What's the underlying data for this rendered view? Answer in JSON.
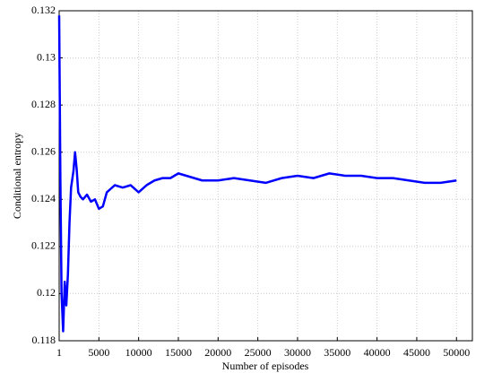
{
  "chart_data": {
    "type": "line",
    "xlabel": "Number of episodes",
    "ylabel": "Conditional entropy",
    "xlim": [
      0,
      52000
    ],
    "xticks": [
      1,
      5000,
      10000,
      15000,
      20000,
      25000,
      30000,
      35000,
      40000,
      45000,
      50000
    ],
    "ylim": [
      0.118,
      0.132
    ],
    "yticks": [
      0.118,
      0.12,
      0.122,
      0.124,
      0.126,
      0.128,
      0.13,
      0.132
    ],
    "grid": true,
    "series": [
      {
        "color": "#0000ff",
        "x": [
          1,
          150,
          300,
          500,
          700,
          900,
          1100,
          1300,
          1500,
          1800,
          2000,
          2200,
          2400,
          2700,
          3000,
          3500,
          4000,
          4500,
          5000,
          5500,
          6000,
          7000,
          8000,
          9000,
          10000,
          11000,
          12000,
          13000,
          14000,
          15000,
          16000,
          17000,
          18000,
          20000,
          22000,
          24000,
          26000,
          28000,
          30000,
          32000,
          34000,
          36000,
          38000,
          40000,
          42000,
          44000,
          46000,
          48000,
          50000
        ],
        "values": [
          0.1318,
          0.125,
          0.12,
          0.1184,
          0.1205,
          0.1195,
          0.1208,
          0.123,
          0.1245,
          0.1252,
          0.126,
          0.1253,
          0.1243,
          0.1241,
          0.124,
          0.1242,
          0.1239,
          0.124,
          0.1236,
          0.1237,
          0.1243,
          0.1246,
          0.1245,
          0.1246,
          0.1243,
          0.1246,
          0.1248,
          0.1249,
          0.1249,
          0.1251,
          0.125,
          0.1249,
          0.1248,
          0.1248,
          0.1249,
          0.1248,
          0.1247,
          0.1249,
          0.125,
          0.1249,
          0.1251,
          0.125,
          0.125,
          0.1249,
          0.1249,
          0.1248,
          0.1247,
          0.1247,
          0.1248
        ]
      }
    ]
  }
}
